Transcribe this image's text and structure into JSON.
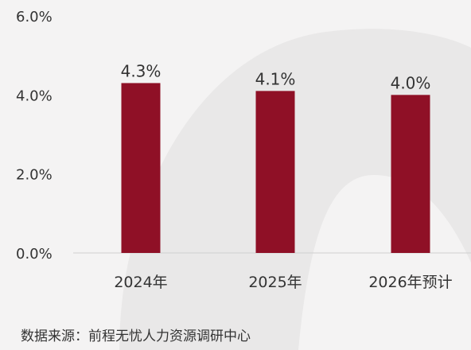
{
  "chart_data": {
    "type": "bar",
    "categories": [
      "2024年",
      "2025年",
      "2026年预计"
    ],
    "values": [
      4.3,
      4.1,
      4.0
    ],
    "data_labels": [
      "4.3%",
      "4.1%",
      "4.0%"
    ],
    "title": "",
    "xlabel": "",
    "ylabel": "",
    "ylim": [
      0,
      6
    ],
    "yticks": [
      0,
      2,
      4,
      6
    ],
    "ytick_labels": [
      "0.0%",
      "2.0%",
      "4.0%",
      "6.0%"
    ],
    "grid": false,
    "legend": "none",
    "bar_color": "#8f1026"
  },
  "source": "数据来源：前程无忧人力资源调研中心",
  "colors": {
    "background": "#f4f3f3",
    "decor_shape": "#e9e8e8",
    "axis": "#cfcfcf",
    "text": "#333333"
  }
}
